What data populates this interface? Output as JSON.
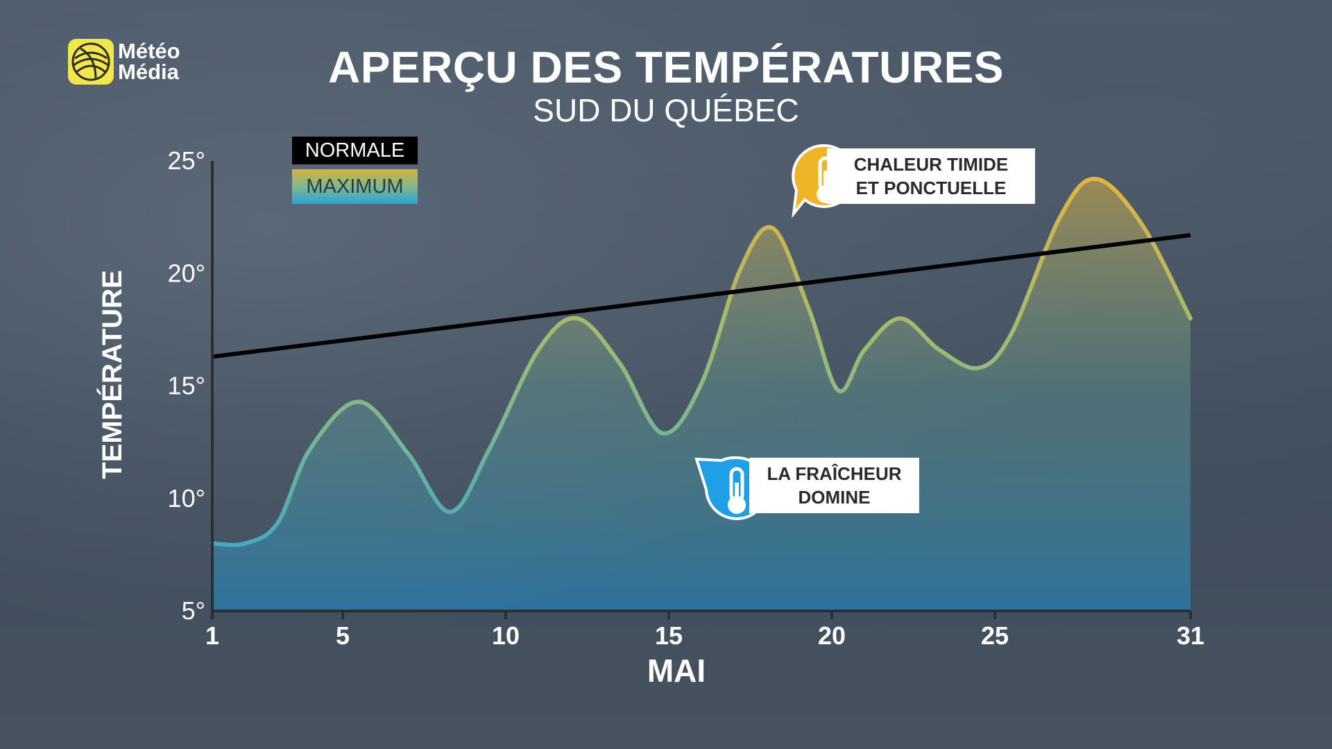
{
  "brand": {
    "name_line1": "Météo",
    "name_line2": "Média",
    "logo_color": "#f2e64b"
  },
  "header": {
    "title": "APERÇU DES TEMPÉRATURES",
    "subtitle": "SUD DU QUÉBEC"
  },
  "legend": {
    "normale_label": "NORMALE",
    "maximum_label": "MAXIMUM",
    "normale_color": "#000000",
    "maximum_gradient": [
      "#e9b43a",
      "#8bbb80",
      "#2aa3dc"
    ]
  },
  "callouts": {
    "warm": {
      "line1": "CHALEUR TIMIDE",
      "line2": "ET PONCTUELLE",
      "icon": "thermometer-icon",
      "color": "#f0b429"
    },
    "cool": {
      "line1": "LA FRAÎCHEUR",
      "line2": "DOMINE",
      "icon": "thermometer-icon",
      "color": "#1f9fe6"
    }
  },
  "chart_data": {
    "type": "line",
    "title": "APERÇU DES TEMPÉRATURES",
    "subtitle": "SUD DU QUÉBEC",
    "xlabel": "MAI",
    "ylabel": "TEMPÉRATURE",
    "xlim": [
      1,
      31
    ],
    "ylim": [
      5,
      25
    ],
    "x_ticks": [
      1,
      5,
      10,
      15,
      20,
      25,
      31
    ],
    "x_tick_labels": [
      "1",
      "5",
      "10",
      "15",
      "20",
      "25",
      "31"
    ],
    "y_ticks": [
      5,
      10,
      15,
      20,
      25
    ],
    "y_tick_labels": [
      "5°",
      "10°",
      "15°",
      "20°",
      "25°"
    ],
    "grid": false,
    "legend_position": "top-left",
    "series": [
      {
        "name": "NORMALE",
        "color": "#000000",
        "x": [
          1,
          31
        ],
        "y": [
          16.3,
          21.7
        ]
      },
      {
        "name": "MAXIMUM",
        "color_gradient": [
          "#e9b43a",
          "#2aa3dc"
        ],
        "x": [
          1,
          2,
          3,
          4,
          5.5,
          7,
          8.3,
          9.5,
          11,
          12.2,
          13.5,
          14.8,
          16,
          17.2,
          18.2,
          19.3,
          20.2,
          21,
          22.1,
          23.3,
          24.5,
          25.5,
          27,
          28.1,
          29.5,
          31
        ],
        "y": [
          8.0,
          8.0,
          8.9,
          12.2,
          14.3,
          12.0,
          9.4,
          12.2,
          16.6,
          18.0,
          16.0,
          12.9,
          15.1,
          20.2,
          22.0,
          18.4,
          14.8,
          16.6,
          18.0,
          16.6,
          15.8,
          17.3,
          22.5,
          24.2,
          22.2,
          18.0
        ]
      }
    ]
  }
}
